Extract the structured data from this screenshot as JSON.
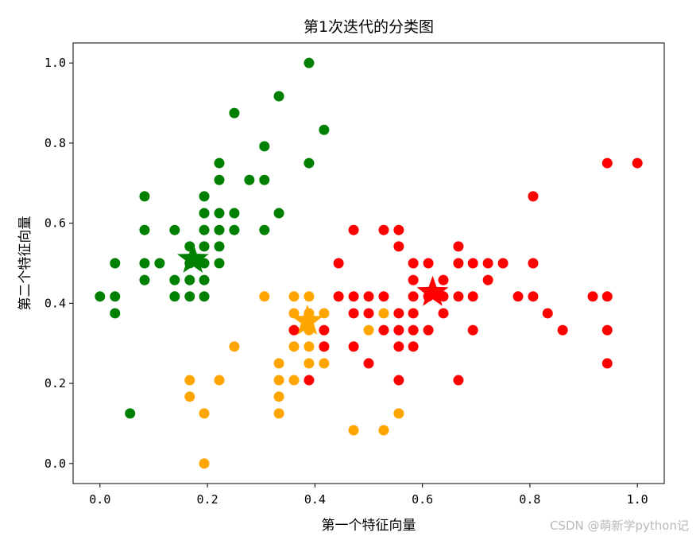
{
  "chart_data": {
    "type": "scatter",
    "title": "第1次迭代的分类图",
    "xlabel": "第一个特征向量",
    "ylabel": "第二个特征向量",
    "xlim": [
      -0.05,
      1.05
    ],
    "ylim": [
      -0.05,
      1.05
    ],
    "xticks": [
      "0.0",
      "0.2",
      "0.4",
      "0.6",
      "0.8",
      "1.0"
    ],
    "yticks": [
      "0.0",
      "0.2",
      "0.4",
      "0.6",
      "0.8",
      "1.0"
    ],
    "xtick_values": [
      0.0,
      0.2,
      0.4,
      0.6,
      0.8,
      1.0
    ],
    "ytick_values": [
      0.0,
      0.2,
      0.4,
      0.6,
      0.8,
      1.0
    ],
    "grid": false,
    "legend": "none",
    "series": [
      {
        "color": "#008000",
        "points": [
          [
            0.0,
            0.417
          ],
          [
            0.028,
            0.5
          ],
          [
            0.028,
            0.417
          ],
          [
            0.028,
            0.375
          ],
          [
            0.056,
            0.125
          ],
          [
            0.083,
            0.667
          ],
          [
            0.083,
            0.583
          ],
          [
            0.083,
            0.5
          ],
          [
            0.083,
            0.458
          ],
          [
            0.111,
            0.5
          ],
          [
            0.139,
            0.583
          ],
          [
            0.139,
            0.458
          ],
          [
            0.139,
            0.417
          ],
          [
            0.167,
            0.542
          ],
          [
            0.167,
            0.5
          ],
          [
            0.167,
            0.417
          ],
          [
            0.194,
            0.667
          ],
          [
            0.194,
            0.625
          ],
          [
            0.194,
            0.583
          ],
          [
            0.194,
            0.542
          ],
          [
            0.194,
            0.5
          ],
          [
            0.194,
            0.417
          ],
          [
            0.222,
            0.75
          ],
          [
            0.222,
            0.708
          ],
          [
            0.222,
            0.625
          ],
          [
            0.222,
            0.583
          ],
          [
            0.222,
            0.542
          ],
          [
            0.25,
            0.875
          ],
          [
            0.25,
            0.625
          ],
          [
            0.25,
            0.583
          ],
          [
            0.278,
            0.708
          ],
          [
            0.306,
            0.792
          ],
          [
            0.306,
            0.708
          ],
          [
            0.306,
            0.583
          ],
          [
            0.333,
            0.917
          ],
          [
            0.333,
            0.625
          ],
          [
            0.389,
            1.0
          ],
          [
            0.389,
            0.75
          ],
          [
            0.417,
            0.833
          ],
          [
            0.167,
            0.458
          ],
          [
            0.222,
            0.5
          ],
          [
            0.194,
            0.458
          ]
        ]
      },
      {
        "color": "#ffa500",
        "points": [
          [
            0.167,
            0.208
          ],
          [
            0.167,
            0.167
          ],
          [
            0.194,
            0.125
          ],
          [
            0.194,
            0.0
          ],
          [
            0.222,
            0.208
          ],
          [
            0.25,
            0.292
          ],
          [
            0.306,
            0.417
          ],
          [
            0.333,
            0.25
          ],
          [
            0.333,
            0.208
          ],
          [
            0.333,
            0.167
          ],
          [
            0.333,
            0.125
          ],
          [
            0.361,
            0.417
          ],
          [
            0.361,
            0.375
          ],
          [
            0.361,
            0.333
          ],
          [
            0.361,
            0.292
          ],
          [
            0.361,
            0.208
          ],
          [
            0.389,
            0.417
          ],
          [
            0.389,
            0.375
          ],
          [
            0.389,
            0.333
          ],
          [
            0.389,
            0.292
          ],
          [
            0.389,
            0.25
          ],
          [
            0.417,
            0.292
          ],
          [
            0.417,
            0.25
          ],
          [
            0.444,
            0.417
          ],
          [
            0.472,
            0.083
          ],
          [
            0.5,
            0.333
          ],
          [
            0.528,
            0.375
          ],
          [
            0.528,
            0.083
          ],
          [
            0.556,
            0.125
          ],
          [
            0.583,
            0.375
          ],
          [
            0.417,
            0.375
          ]
        ]
      },
      {
        "color": "#ff0000",
        "points": [
          [
            0.361,
            0.333
          ],
          [
            0.389,
            0.208
          ],
          [
            0.417,
            0.333
          ],
          [
            0.417,
            0.292
          ],
          [
            0.444,
            0.5
          ],
          [
            0.444,
            0.417
          ],
          [
            0.472,
            0.583
          ],
          [
            0.472,
            0.417
          ],
          [
            0.472,
            0.375
          ],
          [
            0.472,
            0.292
          ],
          [
            0.5,
            0.417
          ],
          [
            0.5,
            0.375
          ],
          [
            0.5,
            0.25
          ],
          [
            0.528,
            0.583
          ],
          [
            0.528,
            0.333
          ],
          [
            0.556,
            0.583
          ],
          [
            0.556,
            0.542
          ],
          [
            0.556,
            0.375
          ],
          [
            0.556,
            0.333
          ],
          [
            0.556,
            0.292
          ],
          [
            0.556,
            0.208
          ],
          [
            0.583,
            0.5
          ],
          [
            0.583,
            0.458
          ],
          [
            0.583,
            0.375
          ],
          [
            0.583,
            0.333
          ],
          [
            0.583,
            0.292
          ],
          [
            0.611,
            0.5
          ],
          [
            0.611,
            0.417
          ],
          [
            0.611,
            0.333
          ],
          [
            0.639,
            0.417
          ],
          [
            0.639,
            0.375
          ],
          [
            0.667,
            0.542
          ],
          [
            0.667,
            0.5
          ],
          [
            0.667,
            0.417
          ],
          [
            0.667,
            0.208
          ],
          [
            0.694,
            0.5
          ],
          [
            0.694,
            0.417
          ],
          [
            0.694,
            0.333
          ],
          [
            0.722,
            0.5
          ],
          [
            0.722,
            0.458
          ],
          [
            0.75,
            0.5
          ],
          [
            0.778,
            0.417
          ],
          [
            0.806,
            0.667
          ],
          [
            0.806,
            0.5
          ],
          [
            0.806,
            0.417
          ],
          [
            0.833,
            0.375
          ],
          [
            0.861,
            0.333
          ],
          [
            0.917,
            0.417
          ],
          [
            0.944,
            0.75
          ],
          [
            0.944,
            0.417
          ],
          [
            0.944,
            0.333
          ],
          [
            0.944,
            0.25
          ],
          [
            1.0,
            0.75
          ],
          [
            0.528,
            0.417
          ],
          [
            0.583,
            0.417
          ],
          [
            0.639,
            0.458
          ]
        ]
      }
    ],
    "centroids": [
      {
        "color": "#008000",
        "x": 0.173,
        "y": 0.51
      },
      {
        "color": "#ffa500",
        "x": 0.386,
        "y": 0.355
      },
      {
        "color": "#ff0000",
        "x": 0.619,
        "y": 0.427
      }
    ]
  },
  "watermark": "CSDN @萌新学python记"
}
